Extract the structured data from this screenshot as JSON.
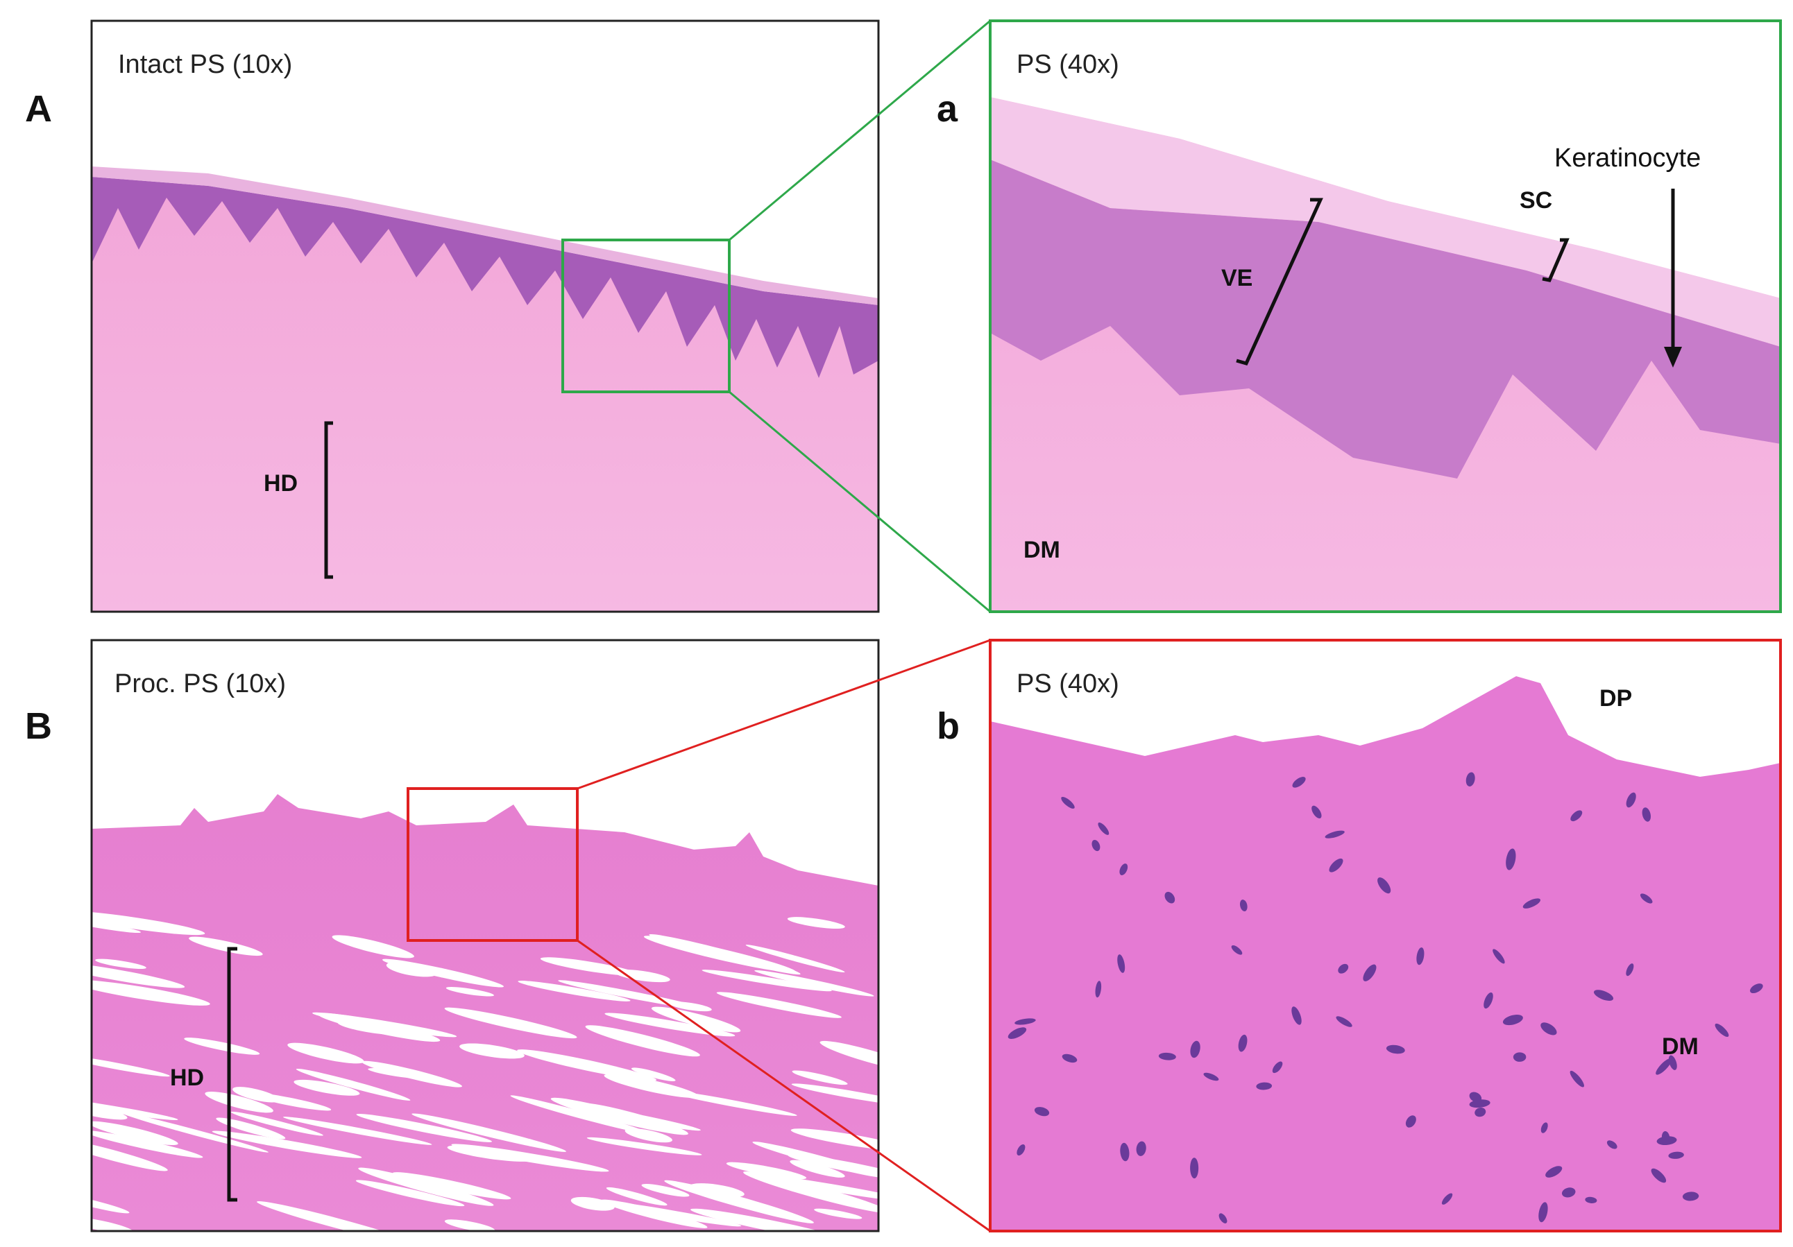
{
  "panels": [
    {
      "letter": "A",
      "title": "Intact PS (10x)",
      "labels": [
        "HD"
      ]
    },
    {
      "letter": "a",
      "title": "PS (40x)",
      "labels": [
        "VE",
        "SC",
        "Keratinocyte",
        "DM"
      ]
    },
    {
      "letter": "B",
      "title": "Proc. PS (10x)",
      "labels": [
        "HD"
      ]
    },
    {
      "letter": "b",
      "title": "PS (40x)",
      "labels": [
        "DP",
        "DM"
      ]
    }
  ]
}
